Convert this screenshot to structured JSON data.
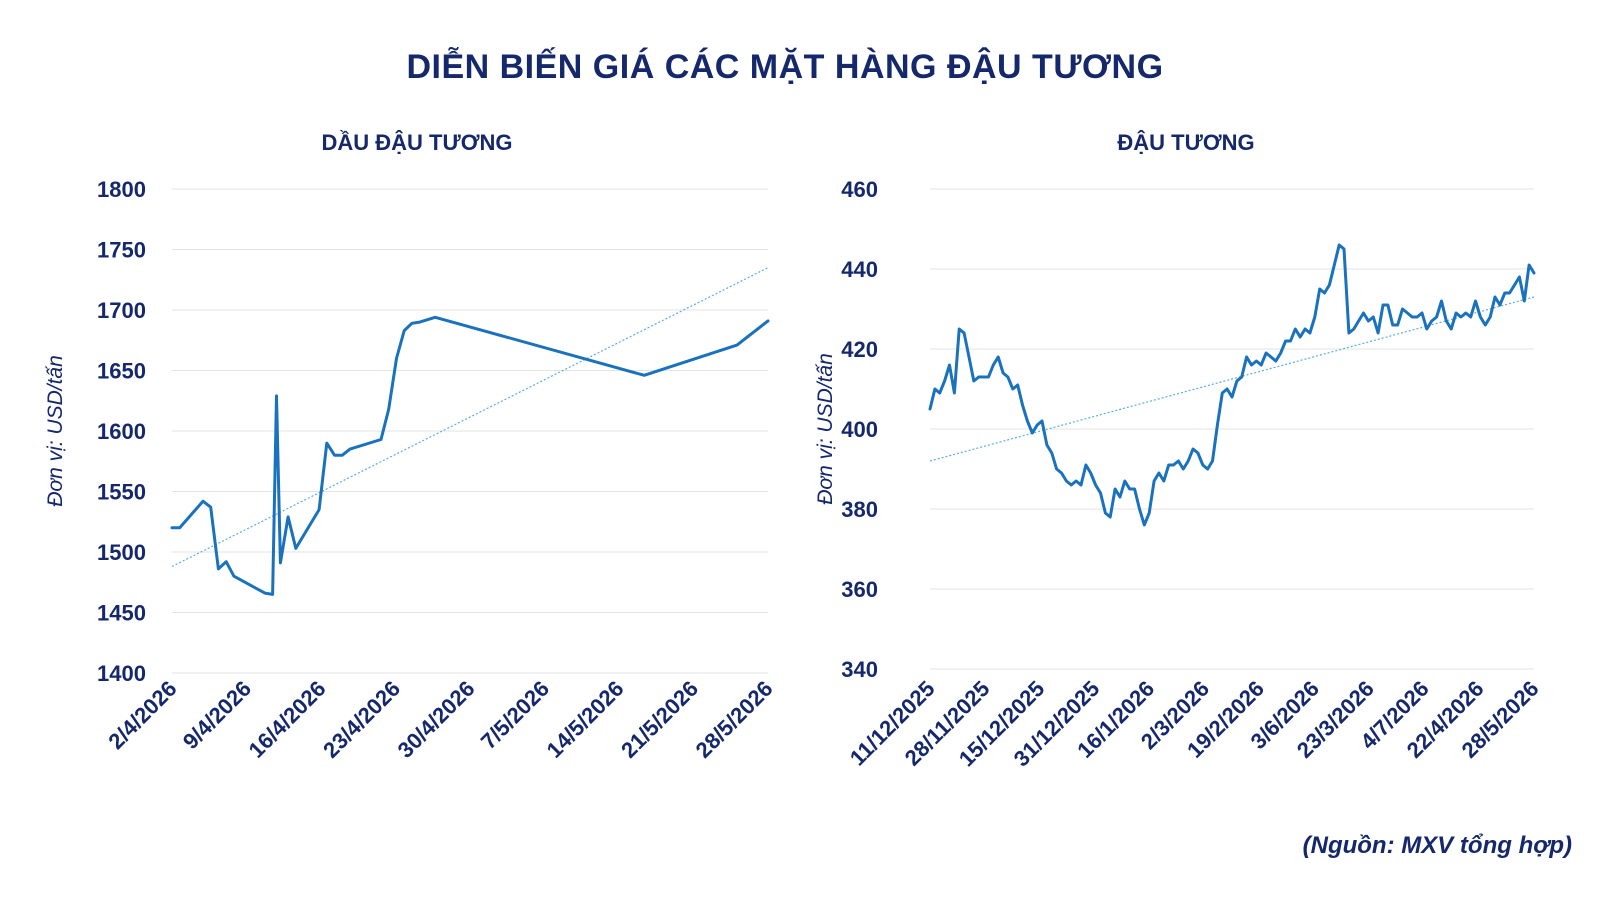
{
  "title": "DIỄN BIẾN GIÁ CÁC MẶT HÀNG ĐẬU TƯƠNG",
  "source": "(Nguồn: MXV tổng hợp)",
  "colors": {
    "text": "#14286b",
    "line": "#1a72bf",
    "trend": "#5aaee0",
    "grid": "#e3e3e3"
  },
  "chart_data": [
    {
      "type": "line",
      "title": "DẦU ĐẬU TƯƠNG",
      "ylabel": "Đơn vị: USD/tấn",
      "ylim": [
        1400,
        1800
      ],
      "yticks": [
        1400,
        1450,
        1500,
        1550,
        1600,
        1650,
        1700,
        1750,
        1800
      ],
      "xticks": [
        "2/4/2026",
        "9/4/2026",
        "16/4/2026",
        "23/4/2026",
        "30/4/2026",
        "7/5/2026",
        "14/5/2026",
        "21/5/2026",
        "28/5/2026"
      ],
      "grid": true,
      "trendline": true,
      "trend": [
        1488,
        1735
      ],
      "series": [
        {
          "x": [
            0,
            1,
            4,
            5,
            6,
            7,
            8,
            12,
            13,
            13.5,
            14,
            15,
            16,
            19,
            20,
            21,
            22,
            23,
            27,
            28,
            29,
            30,
            31,
            32,
            34,
            61,
            73,
            77
          ],
          "values": [
            1520,
            1520,
            1542,
            1537,
            1486,
            1492,
            1480,
            1466,
            1465,
            1629,
            1491,
            1529,
            1503,
            1535,
            1590,
            1580,
            1580,
            1585,
            1593,
            1618,
            1660,
            1683,
            1689,
            1690,
            1694,
            1646,
            1671,
            1691
          ]
        }
      ]
    },
    {
      "type": "line",
      "title": "ĐẬU TƯƠNG",
      "ylabel": "Đơn vị: USD/tấn",
      "ylim": [
        340,
        460
      ],
      "yticks": [
        340,
        360,
        380,
        400,
        420,
        440,
        460
      ],
      "xticks": [
        "11/12/2025",
        "28/11/2025",
        "15/12/2025",
        "31/12/2025",
        "16/1/2026",
        "2/3/2026",
        "19/2/2026",
        "3/6/2026",
        "23/3/2026",
        "4/7/2026",
        "22/4/2026",
        "28/5/2026"
      ],
      "grid": true,
      "trendline": true,
      "trend": [
        392,
        433
      ],
      "series": [
        {
          "values": [
            405,
            410,
            409,
            412,
            416,
            409,
            425,
            424,
            418,
            412,
            413,
            413,
            413,
            416,
            418,
            414,
            413,
            410,
            411,
            406,
            402,
            399,
            401,
            402,
            396,
            394,
            390,
            389,
            387,
            386,
            387,
            386,
            391,
            389,
            386,
            384,
            379,
            378,
            385,
            383,
            387,
            385,
            385,
            380,
            376,
            379,
            387,
            389,
            387,
            391,
            391,
            392,
            390,
            392,
            395,
            394,
            391,
            390,
            392,
            401,
            409,
            410,
            408,
            412,
            413,
            418,
            416,
            417,
            416,
            419,
            418,
            417,
            419,
            422,
            422,
            425,
            423,
            425,
            424,
            428,
            435,
            434,
            436,
            441,
            446,
            445,
            424,
            425,
            427,
            429,
            427,
            428,
            424,
            431,
            431,
            426,
            426,
            430,
            429,
            428,
            428,
            429,
            425,
            427,
            428,
            432,
            427,
            425,
            429,
            428,
            429,
            428,
            432,
            428,
            426,
            428,
            433,
            431,
            434,
            434,
            436,
            438,
            432,
            441,
            439
          ]
        }
      ]
    }
  ]
}
